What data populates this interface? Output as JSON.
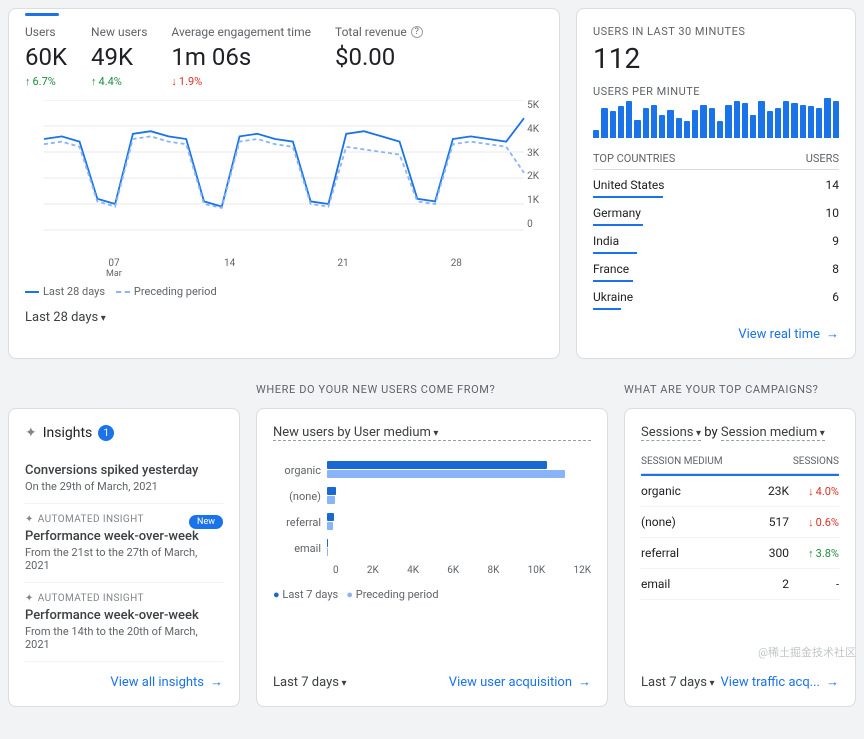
{
  "overview": {
    "metrics": {
      "users": {
        "label": "Users",
        "value": "60K",
        "delta": "6.7%",
        "dir": "up"
      },
      "new_users": {
        "label": "New users",
        "value": "49K",
        "delta": "4.4%",
        "dir": "up"
      },
      "engagement": {
        "label": "Average engagement time",
        "value": "1m 06s",
        "delta": "1.9%",
        "dir": "down"
      },
      "revenue": {
        "label": "Total revenue",
        "value": "$0.00",
        "delta": "",
        "dir": ""
      }
    },
    "chart": {
      "type": "line",
      "ylim": [
        0,
        5000
      ],
      "yticks": [
        "5K",
        "4K",
        "3K",
        "2K",
        "1K",
        "0"
      ],
      "xticks": [
        "07",
        "14",
        "21",
        "28"
      ],
      "xmonth": "Mar",
      "series": [
        {
          "name": "Last 28 days",
          "color": "#1a73e8",
          "dashed": false,
          "points": [
            3500,
            3600,
            3400,
            1200,
            1000,
            3700,
            3800,
            3600,
            3500,
            1100,
            900,
            3600,
            3700,
            3500,
            3400,
            1100,
            1000,
            3700,
            3800,
            3600,
            3400,
            1200,
            1100,
            3500,
            3600,
            3500,
            3400,
            4300
          ]
        },
        {
          "name": "Preceding period",
          "color": "#8ab4f8",
          "dashed": true,
          "points": [
            3300,
            3400,
            3200,
            1100,
            900,
            3500,
            3600,
            3400,
            3300,
            1000,
            850,
            3400,
            3500,
            3300,
            3200,
            1000,
            900,
            3200,
            3100,
            3000,
            2900,
            1100,
            1000,
            3300,
            3400,
            3300,
            3200,
            2200
          ]
        }
      ],
      "grid_color": "#e8eaed",
      "line_width": 1.8
    },
    "range_selector": "Last 28 days",
    "legend_current": "Last 28 days",
    "legend_prev": "Preceding period"
  },
  "realtime": {
    "title1": "USERS IN LAST 30 MINUTES",
    "value": "112",
    "title2": "USERS PER MINUTE",
    "bars": [
      5,
      18,
      16,
      19,
      22,
      11,
      18,
      20,
      14,
      17,
      12,
      10,
      17,
      20,
      18,
      10,
      20,
      22,
      21,
      14,
      22,
      16,
      18,
      22,
      21,
      20,
      19,
      18,
      24,
      22
    ],
    "bar_color": "#1a73e8",
    "col_country": "TOP COUNTRIES",
    "col_users": "USERS",
    "countries": [
      {
        "name": "United States",
        "users": "14"
      },
      {
        "name": "Germany",
        "users": "10"
      },
      {
        "name": "India",
        "users": "9"
      },
      {
        "name": "France",
        "users": "8"
      },
      {
        "name": "Ukraine",
        "users": "6"
      }
    ],
    "link": "View real time"
  },
  "insights": {
    "section": "",
    "title": "Insights",
    "badge": "1",
    "items": [
      {
        "auto": "",
        "title": "Conversions spiked yesterday",
        "sub": "On the 29th of March, 2021",
        "new": false
      },
      {
        "auto": "AUTOMATED INSIGHT",
        "title": "Performance week-over-week",
        "sub": "From the 21st to the 27th of March, 2021",
        "new": true
      },
      {
        "auto": "AUTOMATED INSIGHT",
        "title": "Performance week-over-week",
        "sub": "From the 14th to the 20th of March, 2021",
        "new": false
      }
    ],
    "link": "View all insights"
  },
  "acquisition": {
    "section": "WHERE DO YOUR NEW USERS COME FROM?",
    "selector": "New users by User medium",
    "chart": {
      "type": "bar-horizontal",
      "categories": [
        "organic",
        "(none)",
        "referral",
        "email"
      ],
      "series": [
        {
          "name": "Last 7 days",
          "color": "#1967d2",
          "values": [
            10000,
            400,
            300,
            50
          ]
        },
        {
          "name": "Preceding period",
          "color": "#8ab4f8",
          "values": [
            10800,
            350,
            250,
            30
          ]
        }
      ],
      "xmax": 12000,
      "xticks": [
        "0",
        "2K",
        "4K",
        "6K",
        "8K",
        "10K",
        "12K"
      ]
    },
    "legend_current": "Last 7 days",
    "legend_prev": "Preceding period",
    "range": "Last 7 days",
    "link": "View user acquisition"
  },
  "campaigns": {
    "section": "WHAT ARE YOUR TOP CAMPAIGNS?",
    "dim_selector": "Sessions",
    "by_label": "by",
    "metric_selector": "Session medium",
    "col_medium": "SESSION MEDIUM",
    "col_sessions": "SESSIONS",
    "rows": [
      {
        "medium": "organic",
        "val": "23K",
        "delta": "4.0%",
        "dir": "down"
      },
      {
        "medium": "(none)",
        "val": "517",
        "delta": "0.6%",
        "dir": "down"
      },
      {
        "medium": "referral",
        "val": "300",
        "delta": "3.8%",
        "dir": "up"
      },
      {
        "medium": "email",
        "val": "2",
        "delta": "-",
        "dir": ""
      }
    ],
    "range": "Last 7 days",
    "link": "View traffic acq..."
  },
  "watermark": "@稀土掘金技术社区"
}
